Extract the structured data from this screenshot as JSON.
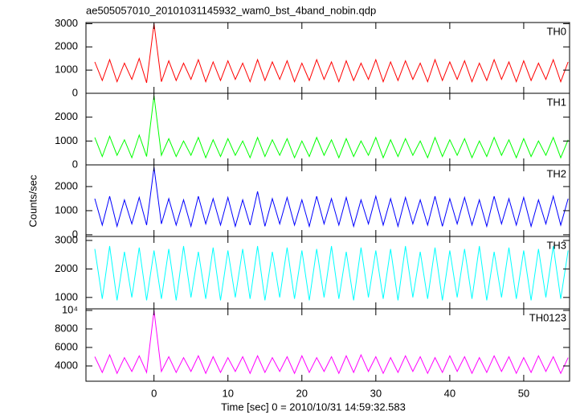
{
  "chart_data": [
    {
      "type": "line",
      "title": "ae505057010_20101031145932_wam0_bst_4band_nobin.qdp",
      "label": "TH0",
      "color": "#ff0000",
      "x": [
        -8,
        -7,
        -6,
        -5,
        -4,
        -3,
        -2,
        -1,
        0,
        1,
        2,
        3,
        4,
        5,
        6,
        7,
        8,
        9,
        10,
        11,
        12,
        13,
        14,
        15,
        16,
        17,
        18,
        19,
        20,
        21,
        22,
        23,
        24,
        25,
        26,
        27,
        28,
        29,
        30,
        31,
        32,
        33,
        34,
        35,
        36,
        37,
        38,
        39,
        40,
        41,
        42,
        43,
        44,
        45,
        46,
        47,
        48,
        49,
        50,
        51,
        52,
        53,
        54,
        55,
        56
      ],
      "values": [
        1350,
        550,
        1450,
        500,
        1300,
        600,
        1500,
        450,
        3000,
        500,
        1400,
        550,
        1300,
        600,
        1450,
        500,
        1350,
        550,
        1400,
        600,
        1300,
        500,
        1450,
        550,
        1350,
        600,
        1400,
        500,
        1300,
        550,
        1450,
        600,
        1350,
        500,
        1400,
        550,
        1300,
        600,
        1450,
        500,
        1350,
        550,
        1400,
        600,
        1300,
        500,
        1450,
        550,
        1350,
        600,
        1400,
        500,
        1300,
        550,
        1450,
        600,
        1350,
        500,
        1400,
        550,
        1300,
        600,
        1450,
        500,
        1350
      ],
      "xlim": [
        -9.2,
        56.2
      ],
      "xticks": [
        0,
        10,
        20,
        30,
        40,
        50
      ],
      "ylim": [
        0,
        3050
      ],
      "yticks": [
        0,
        1000,
        2000,
        3000
      ]
    },
    {
      "type": "line",
      "label": "TH1",
      "color": "#00ff00",
      "x": [
        -8,
        -7,
        -6,
        -5,
        -4,
        -3,
        -2,
        -1,
        0,
        1,
        2,
        3,
        4,
        5,
        6,
        7,
        8,
        9,
        10,
        11,
        12,
        13,
        14,
        15,
        16,
        17,
        18,
        19,
        20,
        21,
        22,
        23,
        24,
        25,
        26,
        27,
        28,
        29,
        30,
        31,
        32,
        33,
        34,
        35,
        36,
        37,
        38,
        39,
        40,
        41,
        42,
        43,
        44,
        45,
        46,
        47,
        48,
        49,
        50,
        51,
        52,
        53,
        54,
        55,
        56
      ],
      "values": [
        1150,
        350,
        1200,
        400,
        1050,
        300,
        1250,
        350,
        2900,
        400,
        1100,
        350,
        1000,
        400,
        1150,
        300,
        1050,
        350,
        1100,
        400,
        1000,
        300,
        1150,
        350,
        1050,
        400,
        1100,
        300,
        1000,
        350,
        1150,
        400,
        1050,
        300,
        1100,
        350,
        1000,
        400,
        1150,
        300,
        1050,
        350,
        1100,
        400,
        1000,
        300,
        1150,
        350,
        1050,
        400,
        1100,
        300,
        1000,
        350,
        1150,
        400,
        1050,
        300,
        1100,
        350,
        1000,
        400,
        1150,
        300,
        1050
      ],
      "xlim": [
        -9.2,
        56.2
      ],
      "xticks": [
        0,
        10,
        20,
        30,
        40,
        50
      ],
      "ylim": [
        0,
        3000
      ],
      "yticks": [
        0,
        1000,
        2000
      ]
    },
    {
      "type": "line",
      "label": "TH2",
      "color": "#0000ff",
      "ylabel": "Counts/sec",
      "x": [
        -8,
        -7,
        -6,
        -5,
        -4,
        -3,
        -2,
        -1,
        0,
        1,
        2,
        3,
        4,
        5,
        6,
        7,
        8,
        9,
        10,
        11,
        12,
        13,
        14,
        15,
        16,
        17,
        18,
        19,
        20,
        21,
        22,
        23,
        24,
        25,
        26,
        27,
        28,
        29,
        30,
        31,
        32,
        33,
        34,
        35,
        36,
        37,
        38,
        39,
        40,
        41,
        42,
        43,
        44,
        45,
        46,
        47,
        48,
        49,
        50,
        51,
        52,
        53,
        54,
        55,
        56
      ],
      "values": [
        1500,
        400,
        1600,
        350,
        1450,
        450,
        1550,
        400,
        2800,
        450,
        1500,
        400,
        1450,
        350,
        1600,
        450,
        1500,
        400,
        1550,
        350,
        1450,
        400,
        1800,
        350,
        1500,
        450,
        1550,
        400,
        1450,
        350,
        1600,
        450,
        1500,
        400,
        1550,
        350,
        1450,
        450,
        1600,
        400,
        1500,
        350,
        1550,
        450,
        1450,
        400,
        1600,
        350,
        1500,
        450,
        1550,
        400,
        1450,
        350,
        1600,
        450,
        1500,
        400,
        1550,
        350,
        1450,
        450,
        1600,
        400,
        1500
      ],
      "xlim": [
        -9.2,
        56.2
      ],
      "xticks": [
        0,
        10,
        20,
        30,
        40,
        50
      ],
      "ylim": [
        -70,
        2900
      ],
      "yticks": [
        0,
        1000,
        2000
      ]
    },
    {
      "type": "line",
      "label": "TH3",
      "color": "#00ffff",
      "x": [
        -8,
        -7,
        -6,
        -5,
        -4,
        -3,
        -2,
        -1,
        0,
        1,
        2,
        3,
        4,
        5,
        6,
        7,
        8,
        9,
        10,
        11,
        12,
        13,
        14,
        15,
        16,
        17,
        18,
        19,
        20,
        21,
        22,
        23,
        24,
        25,
        26,
        27,
        28,
        29,
        30,
        31,
        32,
        33,
        34,
        35,
        36,
        37,
        38,
        39,
        40,
        41,
        42,
        43,
        44,
        45,
        46,
        47,
        48,
        49,
        50,
        51,
        52,
        53,
        54,
        55,
        56
      ],
      "values": [
        2700,
        950,
        2800,
        900,
        2600,
        1000,
        2750,
        900,
        2650,
        950,
        2700,
        900,
        2800,
        1000,
        2600,
        950,
        2750,
        900,
        2650,
        1000,
        2700,
        950,
        2800,
        900,
        2600,
        1000,
        2750,
        950,
        2650,
        900,
        2700,
        1000,
        2800,
        950,
        2600,
        900,
        2750,
        1000,
        2650,
        950,
        2700,
        900,
        2800,
        1000,
        2600,
        950,
        2750,
        900,
        2650,
        1000,
        2700,
        950,
        2800,
        900,
        2600,
        1000,
        2750,
        950,
        2650,
        900,
        2700,
        1000,
        2800,
        950,
        2650
      ],
      "xlim": [
        -9.2,
        56.2
      ],
      "xticks": [
        0,
        10,
        20,
        30,
        40,
        50
      ],
      "ylim": [
        600,
        3140
      ],
      "yticks": [
        1000,
        2000,
        3000
      ]
    },
    {
      "type": "line",
      "label": "TH0123",
      "color": "#ff00ff",
      "xlabel": "Time [sec] 0 = 2010/10/31 14:59:32.583",
      "x": [
        -8,
        -7,
        -6,
        -5,
        -4,
        -3,
        -2,
        -1,
        0,
        1,
        2,
        3,
        4,
        5,
        6,
        7,
        8,
        9,
        10,
        11,
        12,
        13,
        14,
        15,
        16,
        17,
        18,
        19,
        20,
        21,
        22,
        23,
        24,
        25,
        26,
        27,
        28,
        29,
        30,
        31,
        32,
        33,
        34,
        35,
        36,
        37,
        38,
        39,
        40,
        41,
        42,
        43,
        44,
        45,
        46,
        47,
        48,
        49,
        50,
        51,
        52,
        53,
        54,
        55,
        56
      ],
      "values": [
        5000,
        3300,
        5200,
        3200,
        4900,
        3400,
        5100,
        3300,
        10000,
        3400,
        5000,
        3300,
        4900,
        3400,
        5100,
        3200,
        5000,
        3300,
        4900,
        3400,
        5000,
        3200,
        5100,
        3300,
        4900,
        3400,
        5000,
        3200,
        5100,
        3300,
        4900,
        3400,
        5000,
        3200,
        5100,
        3300,
        5200,
        3400,
        5000,
        3200,
        4900,
        3300,
        5100,
        3400,
        5000,
        3200,
        4900,
        3300,
        5100,
        3400,
        5000,
        3200,
        4900,
        3300,
        5100,
        3400,
        5000,
        3200,
        4900,
        3300,
        5100,
        3400,
        5000,
        3200,
        4900
      ],
      "xlim": [
        -9.2,
        56.2
      ],
      "xticks": [
        0,
        10,
        20,
        30,
        40,
        50
      ],
      "ylim": [
        2350,
        10170
      ],
      "yticks": [
        4000,
        6000,
        8000,
        {
          "value": 10000,
          "label": "10⁴"
        }
      ]
    }
  ]
}
